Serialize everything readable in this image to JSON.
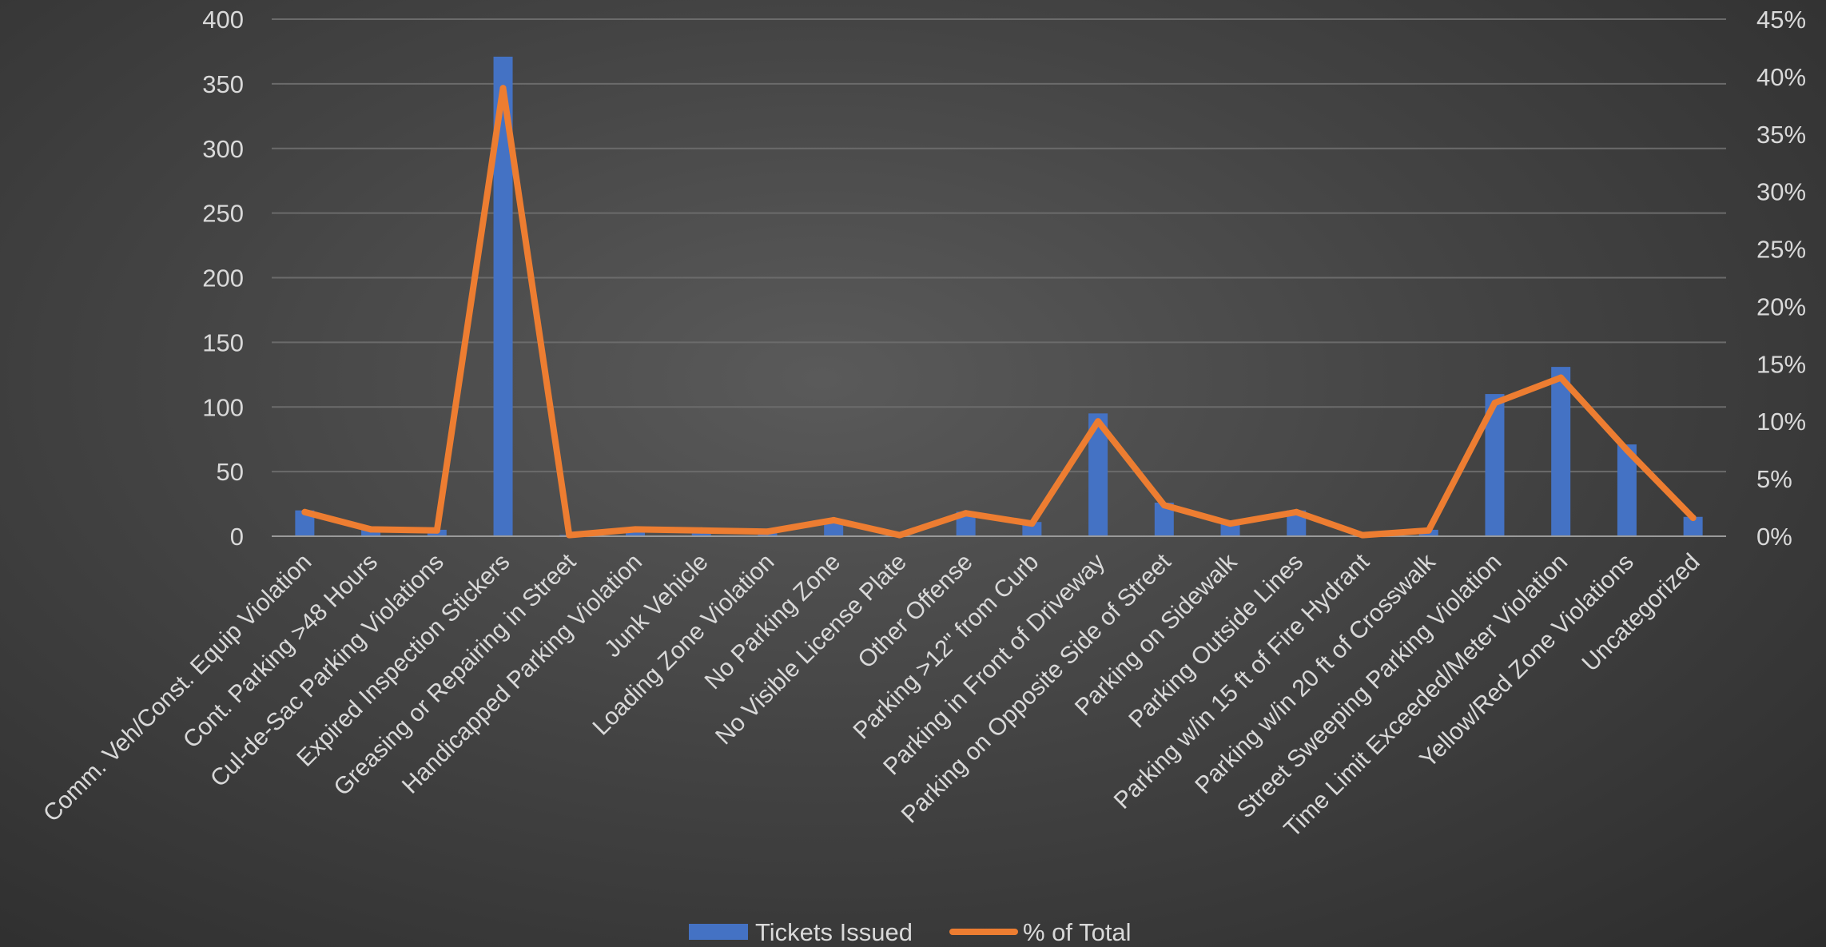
{
  "chart_data": {
    "type": "bar+line",
    "title": "",
    "xlabel": "",
    "ylabel": "",
    "y_left_lim": [
      0,
      400
    ],
    "y_left_ticks": [
      0,
      50,
      100,
      150,
      200,
      250,
      300,
      350,
      400
    ],
    "y_right_lim": [
      0,
      0.45
    ],
    "y_right_ticks": [
      "0%",
      "5%",
      "10%",
      "15%",
      "20%",
      "25%",
      "30%",
      "35%",
      "40%",
      "45%"
    ],
    "grid": true,
    "legend_position": "bottom",
    "categories": [
      "Comm. Veh/Const. Equip Violation",
      "Cont. Parking >48 Hours",
      "Cul-de-Sac Parking Violations",
      "Expired Inspection Stickers",
      "Greasing or Repairing in Street",
      "Handicapped Parking Violation",
      "Junk Vehicle",
      "Loading Zone Violation",
      "No Parking Zone",
      "No Visible License Plate",
      "Other Offense",
      "Parking >12\" from Curb",
      "Parking in Front of Driveway",
      "Parking on Opposite Side of Street",
      "Parking on Sidewalk",
      "Parking Outside Lines",
      "Parking w/in 15 ft of Fire Hydrant",
      "Parking w/in 20 ft of Crosswalk",
      "Street Sweeping Parking Violation",
      "Time Limit Exceeded/Meter Violation",
      "Yellow/Red Zone Violations",
      "Uncategorized"
    ],
    "series": [
      {
        "name": "Tickets Issued",
        "type": "bar",
        "axis": "left",
        "color": "#4472C4",
        "values": [
          20,
          6,
          5,
          371,
          1,
          6,
          5,
          4,
          13,
          1,
          19,
          11,
          95,
          26,
          11,
          20,
          1,
          5,
          110,
          131,
          71,
          15
        ]
      },
      {
        "name": "% of Total",
        "type": "line",
        "axis": "right",
        "color": "#ED7D31",
        "values": [
          0.021,
          0.006,
          0.005,
          0.39,
          0.001,
          0.006,
          0.005,
          0.004,
          0.014,
          0.001,
          0.02,
          0.011,
          0.1,
          0.027,
          0.011,
          0.021,
          0.001,
          0.005,
          0.116,
          0.138,
          0.075,
          0.016
        ]
      }
    ]
  }
}
